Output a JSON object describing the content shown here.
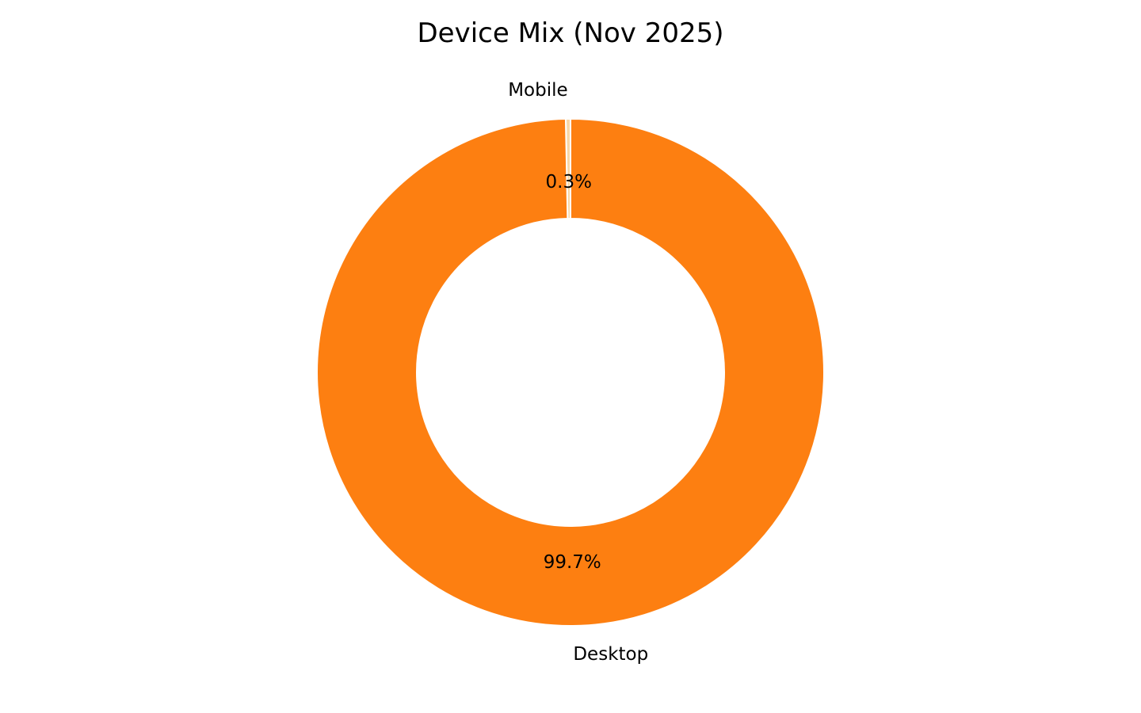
{
  "chart_data": {
    "type": "pie",
    "donut": true,
    "title": "Device Mix (Nov 2025)",
    "categories": [
      "Mobile",
      "Desktop"
    ],
    "values": [
      0.3,
      99.7
    ],
    "value_labels": [
      "0.3%",
      "99.7%"
    ],
    "colors": [
      "#f7d7a8",
      "#fd7f11"
    ],
    "edge_color": "#ffffff",
    "start_angle_deg": 90,
    "direction": "counterclockwise",
    "legend": "none"
  }
}
